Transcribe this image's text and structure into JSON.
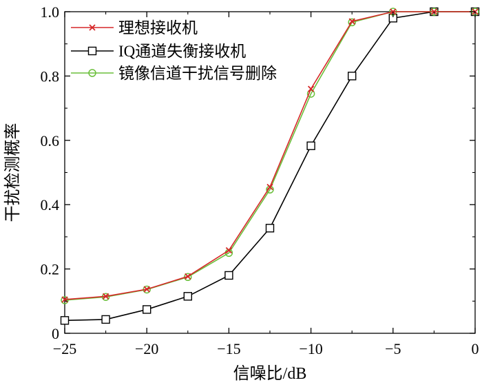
{
  "chart_data": {
    "type": "line",
    "xlabel": "信噪比/dB",
    "ylabel": "干扰检测概率",
    "xlim": [
      -25,
      0
    ],
    "ylim": [
      0,
      1.0
    ],
    "xticks": [
      -25,
      -20,
      -15,
      -10,
      -5,
      0
    ],
    "yticks": [
      0,
      0.2,
      0.4,
      0.6,
      0.8,
      1.0
    ],
    "xtick_labels": [
      "−25",
      "−20",
      "−15",
      "−10",
      "−5",
      "0"
    ],
    "ytick_labels": [
      "0",
      "0.2",
      "0.4",
      "0.6",
      "0.8",
      "1.0"
    ],
    "legend_position": "top-left",
    "grid": false,
    "x": [
      -25,
      -22.5,
      -20,
      -17.5,
      -15,
      -12.5,
      -10,
      -7.5,
      -5,
      -2.5,
      0
    ],
    "series": [
      {
        "name": "理想接收机",
        "color": "#d62728",
        "marker": "x",
        "values": [
          0.105,
          0.115,
          0.137,
          0.177,
          0.258,
          0.455,
          0.76,
          0.97,
          1.0,
          1.0,
          1.0
        ]
      },
      {
        "name": "IQ通道失衡接收机",
        "color": "#000000",
        "marker": "square",
        "values": [
          0.04,
          0.043,
          0.074,
          0.115,
          0.18,
          0.327,
          0.583,
          0.8,
          0.98,
          1.0,
          1.0
        ]
      },
      {
        "name": "镜像信道干扰信号删除",
        "color": "#6abf3a",
        "marker": "circle",
        "values": [
          0.103,
          0.113,
          0.136,
          0.175,
          0.25,
          0.447,
          0.745,
          0.967,
          1.0,
          1.0,
          1.0
        ]
      }
    ]
  }
}
